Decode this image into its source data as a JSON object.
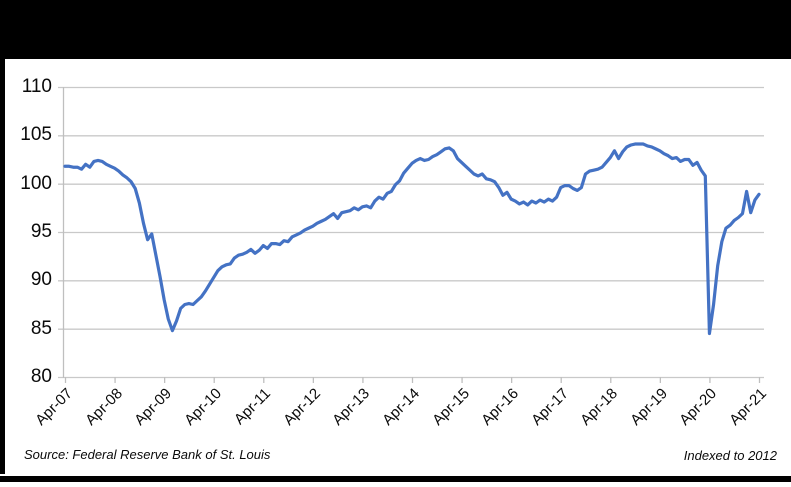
{
  "frame": {
    "top_bar_color": "#000000",
    "left_bar_color": "#000000",
    "bottom_bar_color": "#000000"
  },
  "footer": {
    "source": "Source: Federal Reserve Bank of St. Louis",
    "note": "Indexed to 2012"
  },
  "colors": {
    "series_line": "#4472C4",
    "gridline": "#C9C9C9",
    "axis": "#BFBFBF",
    "text": "#0a0a0a"
  },
  "chart_data": {
    "type": "line",
    "title": "",
    "xlabel": "",
    "ylabel": "",
    "ylim": [
      80,
      110
    ],
    "y_ticks": [
      110,
      105,
      100,
      95,
      90,
      85,
      80
    ],
    "x_tick_labels": [
      "Apr-07",
      "Apr-08",
      "Apr-09",
      "Apr-10",
      "Apr-11",
      "Apr-12",
      "Apr-13",
      "Apr-14",
      "Apr-15",
      "Apr-16",
      "Apr-17",
      "Apr-18",
      "Apr-19",
      "Apr-20",
      "Apr-21"
    ],
    "grid": "horizontal-only",
    "legend": "none",
    "frequency": "monthly",
    "x_start": "Apr-2007",
    "x_end": "Apr-2021",
    "series": [
      {
        "name": "Index (2012=100)",
        "color": "#4472C4",
        "values": [
          101.8,
          101.8,
          101.7,
          101.7,
          101.5,
          102.0,
          101.7,
          102.3,
          102.4,
          102.3,
          102.0,
          101.8,
          101.6,
          101.3,
          100.9,
          100.6,
          100.2,
          99.5,
          98.0,
          95.9,
          94.2,
          94.8,
          92.6,
          90.4,
          88.0,
          86.0,
          84.8,
          85.8,
          87.1,
          87.5,
          87.6,
          87.5,
          87.9,
          88.3,
          88.9,
          89.6,
          90.3,
          91.0,
          91.4,
          91.6,
          91.7,
          92.3,
          92.6,
          92.7,
          92.9,
          93.2,
          92.8,
          93.1,
          93.6,
          93.3,
          93.8,
          93.8,
          93.7,
          94.1,
          94.0,
          94.5,
          94.7,
          94.9,
          95.2,
          95.4,
          95.6,
          95.9,
          96.1,
          96.3,
          96.6,
          96.9,
          96.4,
          97.0,
          97.1,
          97.2,
          97.5,
          97.3,
          97.6,
          97.7,
          97.5,
          98.2,
          98.6,
          98.4,
          99.0,
          99.2,
          99.9,
          100.3,
          101.1,
          101.6,
          102.1,
          102.4,
          102.6,
          102.4,
          102.5,
          102.8,
          103.0,
          103.3,
          103.6,
          103.7,
          103.4,
          102.6,
          102.2,
          101.8,
          101.4,
          101.0,
          100.8,
          101.0,
          100.5,
          100.4,
          100.2,
          99.6,
          98.8,
          99.1,
          98.4,
          98.2,
          97.9,
          98.1,
          97.8,
          98.2,
          98.0,
          98.3,
          98.1,
          98.4,
          98.2,
          98.6,
          99.6,
          99.8,
          99.8,
          99.5,
          99.3,
          99.6,
          101.0,
          101.3,
          101.4,
          101.5,
          101.7,
          102.2,
          102.7,
          103.4,
          102.6,
          103.3,
          103.8,
          104.0,
          104.1,
          104.1,
          104.1,
          103.9,
          103.8,
          103.6,
          103.4,
          103.1,
          102.9,
          102.6,
          102.7,
          102.3,
          102.5,
          102.5,
          101.9,
          102.2,
          101.4,
          100.8,
          84.5,
          87.5,
          91.5,
          94.0,
          95.4,
          95.7,
          96.2,
          96.5,
          96.9,
          99.2,
          97.0,
          98.3,
          98.9
        ]
      }
    ]
  }
}
